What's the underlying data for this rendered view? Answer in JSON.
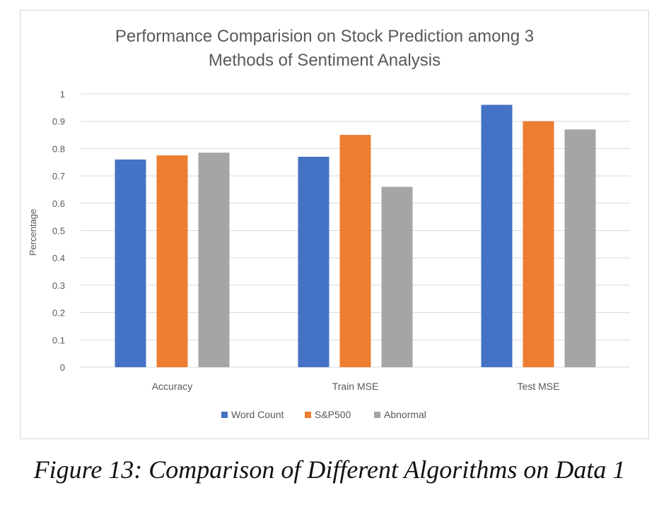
{
  "chart_data": {
    "type": "bar",
    "title": "Performance Comparision  on Stock Prediction among 3 Methods of Sentiment Analysis",
    "title_lines": [
      "Performance Comparision  on Stock Prediction among 3",
      "Methods of Sentiment Analysis"
    ],
    "xlabel": "",
    "ylabel": "Percentage",
    "ylim": [
      0,
      1
    ],
    "yticks": [
      "0",
      "0.1",
      "0.2",
      "0.3",
      "0.4",
      "0.5",
      "0.6",
      "0.7",
      "0.8",
      "0.9",
      "1"
    ],
    "categories": [
      "Accuracy",
      "Train  MSE",
      "Test MSE"
    ],
    "series": [
      {
        "name": "Word Count",
        "color": "#4472c4",
        "values": [
          0.76,
          0.77,
          0.96
        ]
      },
      {
        "name": "S&P500",
        "color": "#ed7d31",
        "values": [
          0.775,
          0.85,
          0.9
        ]
      },
      {
        "name": "Abnormal",
        "color": "#a5a5a5",
        "values": [
          0.785,
          0.66,
          0.87
        ]
      }
    ],
    "grid": true,
    "legend_position": "bottom"
  },
  "caption": "Figure 13: Comparison of Different Algorithms on Data 1"
}
